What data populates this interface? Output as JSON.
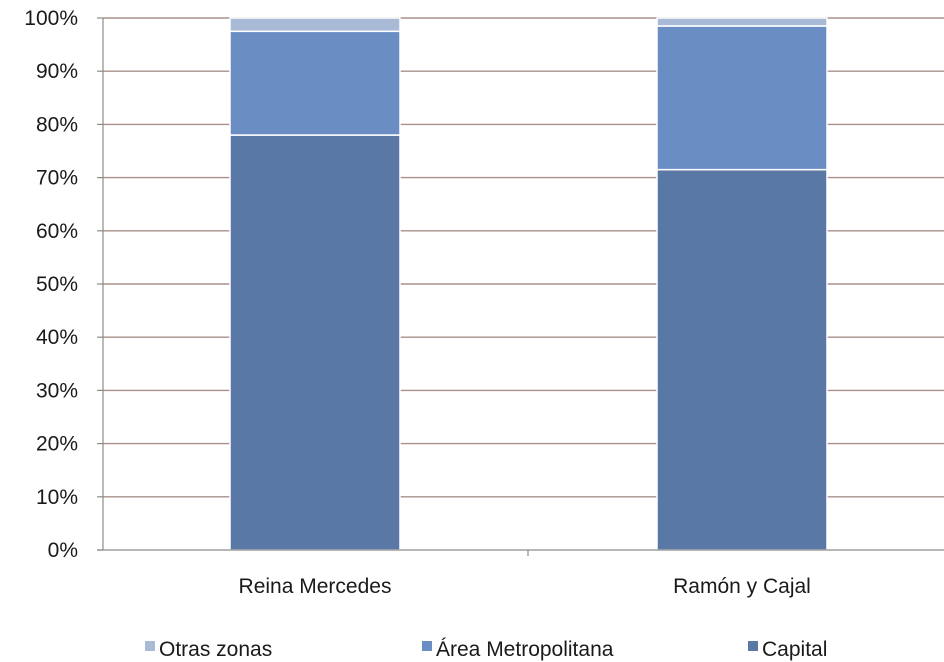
{
  "chart_data": {
    "type": "bar",
    "stacked": true,
    "percent": true,
    "categories": [
      "Reina Mercedes",
      "Ramón y Cajal"
    ],
    "series": [
      {
        "name": "Capital",
        "values": [
          78,
          71.5
        ],
        "color": "#5a78a6"
      },
      {
        "name": "Área Metropolitana",
        "values": [
          19.5,
          27
        ],
        "color": "#6a8dc4"
      },
      {
        "name": "Otras zonas",
        "values": [
          2.5,
          1.5
        ],
        "color": "#a9bad6"
      }
    ],
    "y_ticks": [
      "0%",
      "10%",
      "20%",
      "30%",
      "40%",
      "50%",
      "60%",
      "70%",
      "80%",
      "90%",
      "100%"
    ],
    "ylim": [
      0,
      100
    ],
    "grid": true,
    "legend": {
      "position": "bottom",
      "order": [
        "Otras zonas",
        "Área Metropolitana",
        "Capital"
      ]
    },
    "gridline_color": "#a9908a",
    "axis_color": "#8c8c8c"
  }
}
